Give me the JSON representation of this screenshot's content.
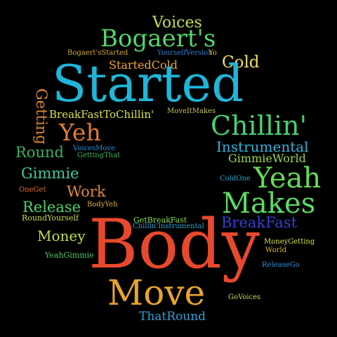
{
  "words": [
    {
      "text": "Voices",
      "color": "#c3e04a"
    },
    {
      "text": "Bogaert's",
      "color": "#52d66a"
    },
    {
      "text": "Bogaert'sStarted",
      "color": "#d9a83a"
    },
    {
      "text": "YourselfVersion",
      "color": "#2a7fd4"
    },
    {
      "text": "Yo",
      "color": "#f0b429"
    },
    {
      "text": "StartedCold",
      "color": "#f0a53a"
    },
    {
      "text": "Cold",
      "color": "#f2e15a"
    },
    {
      "text": "Started",
      "color": "#1fb6d9"
    },
    {
      "text": "Getting",
      "color": "#d98a2e"
    },
    {
      "text": "BreakFastToChillin'",
      "color": "#d8e34c"
    },
    {
      "text": "MoveItMakes",
      "color": "#c9c35a"
    },
    {
      "text": "Chillin'",
      "color": "#47d16e"
    },
    {
      "text": "Yeh",
      "color": "#e57a2c"
    },
    {
      "text": "Instrumental",
      "color": "#33b3d8"
    },
    {
      "text": "Round",
      "color": "#36b36a"
    },
    {
      "text": "VoicesMove",
      "color": "#2a8fcf"
    },
    {
      "text": "GettingThat",
      "color": "#3fae5f"
    },
    {
      "text": "GimmieWorld",
      "color": "#9bd64c"
    },
    {
      "text": "Gimmie",
      "color": "#3fc9a0"
    },
    {
      "text": "ColdOne",
      "color": "#27a3c6"
    },
    {
      "text": "Yeah",
      "color": "#62dd52"
    },
    {
      "text": "OneGet",
      "color": "#e0702a"
    },
    {
      "text": "Work",
      "color": "#e08a2e"
    },
    {
      "text": "Makes",
      "color": "#5bdc62"
    },
    {
      "text": "Release",
      "color": "#4ed36a"
    },
    {
      "text": "BodyYeh",
      "color": "#e0b43a"
    },
    {
      "text": "RoundYourself",
      "color": "#c8df4a"
    },
    {
      "text": "GetBreakFast",
      "color": "#86d64c"
    },
    {
      "text": "BreakFast",
      "color": "#3a3fd4"
    },
    {
      "text": "Chillin'Instrumental",
      "color": "#2f9fc9"
    },
    {
      "text": "Money",
      "color": "#c2e04a"
    },
    {
      "text": "Body",
      "color": "#e8492c"
    },
    {
      "text": "MoneyGetting",
      "color": "#d6e04a"
    },
    {
      "text": "World",
      "color": "#e0b43a"
    },
    {
      "text": "YeahGimmie",
      "color": "#47c96a"
    },
    {
      "text": "ReleaseGo",
      "color": "#2f8fd0"
    },
    {
      "text": "Move",
      "color": "#e7a52a"
    },
    {
      "text": "GoVoices",
      "color": "#c7d94a"
    },
    {
      "text": "ThatRound",
      "color": "#2f9fd6"
    }
  ]
}
